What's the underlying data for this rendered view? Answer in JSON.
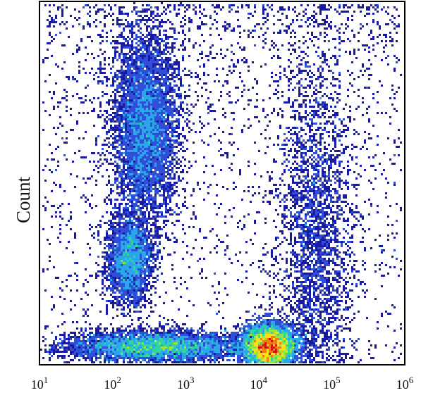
{
  "chart_data": {
    "type": "scatter",
    "subtype": "flow-cytometry-density-dot-plot",
    "title": "",
    "xlabel": "",
    "ylabel": "Count",
    "x_scale": "log",
    "xlim": [
      10,
      1000000
    ],
    "x_ticks": [
      {
        "value": 10,
        "base": "10",
        "exp": "1"
      },
      {
        "value": 100,
        "base": "10",
        "exp": "2"
      },
      {
        "value": 1000,
        "base": "10",
        "exp": "3"
      },
      {
        "value": 10000,
        "base": "10",
        "exp": "4"
      },
      {
        "value": 100000,
        "base": "10",
        "exp": "5"
      },
      {
        "value": 1000000,
        "base": "10",
        "exp": "6"
      }
    ],
    "y_ticks_shown": false,
    "grid": false,
    "legend": "none",
    "colormap": [
      "#1a1aa0",
      "#2f4fd8",
      "#2aa7e8",
      "#30d6a0",
      "#9be23a",
      "#f2e21a",
      "#f57a10",
      "#d41010"
    ],
    "populations": [
      {
        "x_center": 280,
        "y_rel": 0.66,
        "spread_x_decades": 0.22,
        "spread_y": 0.13,
        "density": "high",
        "peak_color": "#c8e81a"
      },
      {
        "x_center": 170,
        "y_rel": 0.29,
        "spread_x_decades": 0.15,
        "spread_y": 0.06,
        "density": "medium",
        "peak_color": "#2aa7e8"
      },
      {
        "x_center": 400,
        "y_rel": 0.05,
        "spread_x_decades": 0.6,
        "spread_y": 0.02,
        "density": "high",
        "peak_color": "#f2e21a"
      },
      {
        "x_center": 14000,
        "y_rel": 0.05,
        "spread_x_decades": 0.18,
        "spread_y": 0.03,
        "density": "very high",
        "peak_color": "#d41010"
      },
      {
        "x_center": 60000,
        "y_rel": 0.35,
        "spread_x_decades": 0.25,
        "spread_y": 0.25,
        "density": "medium",
        "peak_color": "#30d6a0"
      }
    ]
  }
}
